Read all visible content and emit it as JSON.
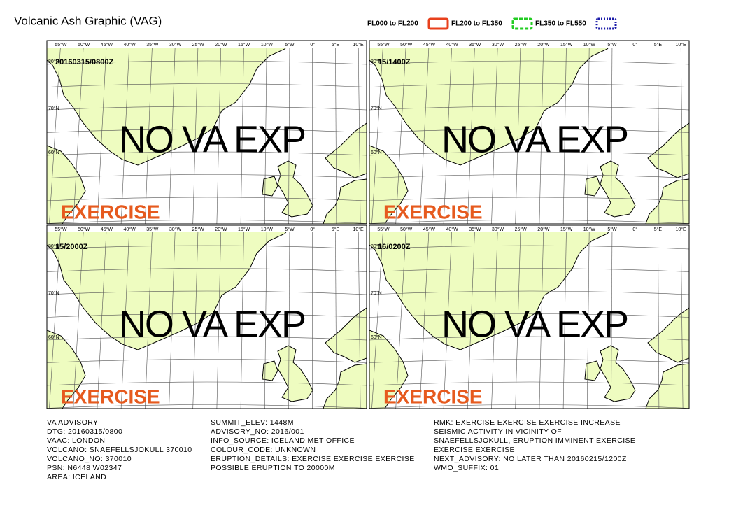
{
  "header": {
    "title": "Volcanic Ash Graphic (VAG)"
  },
  "legend": [
    {
      "label": "FL000 to FL200",
      "color": "#e8401c",
      "style": "solid"
    },
    {
      "label": "FL200 to FL350",
      "color": "#22cc22",
      "style": "dashed"
    },
    {
      "label": "FL350 to FL550",
      "color": "#1a1aa8",
      "style": "dotted"
    }
  ],
  "map": {
    "longitude_labels": [
      "55°W",
      "50°W",
      "45°W",
      "40°W",
      "35°W",
      "30°W",
      "25°W",
      "20°W",
      "15°W",
      "10°W",
      "5°W",
      "0°",
      "5°E",
      "10°E"
    ],
    "latitude_labels": [
      "80°N",
      "70°N",
      "60°N"
    ]
  },
  "panels": [
    {
      "time": "20160315/0800Z",
      "status": "NO VA EXP",
      "watermark": "EXERCISE"
    },
    {
      "time": "15/1400Z",
      "status": "NO VA EXP",
      "watermark": "EXERCISE"
    },
    {
      "time": "15/2000Z",
      "status": "NO VA EXP",
      "watermark": "EXERCISE"
    },
    {
      "time": "16/0200Z",
      "status": "NO VA EXP",
      "watermark": "EXERCISE"
    }
  ],
  "advisory": [
    [
      "VA ADVISORY",
      "DTG: 20160315/0800",
      "VAAC: LONDON",
      "VOLCANO: SNAEFELLSJOKULL 370010",
      "VOLCANO_NO: 370010",
      "PSN: N6448 W02347",
      "AREA: ICELAND"
    ],
    [
      "SUMMIT_ELEV: 1448M",
      "ADVISORY_NO: 2016/001",
      "INFO_SOURCE: ICELAND MET OFFICE",
      "COLOUR_CODE: UNKNOWN",
      "ERUPTION_DETAILS: EXERCISE EXERCISE EXERCISE",
      "POSSIBLE ERUPTION TO 20000M"
    ],
    [
      "RMK: EXERCISE EXERCISE EXERCISE INCREASE",
      "SEISMIC ACTIVITY IN VICINITY OF",
      "SNAEFELLSJOKULL, ERUPTION IMMINENT EXERCISE",
      "EXERCISE EXERCISE",
      "NEXT_ADVISORY: NO LATER THAN 20160215/1200Z",
      "WMO_SUFFIX: 01"
    ]
  ]
}
